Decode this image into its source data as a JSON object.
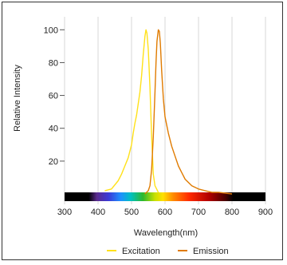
{
  "chart_data": {
    "type": "line",
    "title": "",
    "xlabel": "Wavelength(nm)",
    "ylabel": "Relative Intensity",
    "xlim": [
      300,
      900
    ],
    "ylim": [
      0,
      105
    ],
    "xticks": [
      300,
      400,
      500,
      600,
      700,
      800,
      900
    ],
    "yticks": [
      20,
      40,
      60,
      80,
      100
    ],
    "grid": "vertical",
    "legend_position": "bottom-center",
    "spectrum_bar": {
      "from_nm": 300,
      "to_nm": 900
    },
    "series": [
      {
        "name": "Excitation",
        "color": "#ffe119",
        "x": [
          420,
          440,
          460,
          470,
          480,
          490,
          500,
          505,
          510,
          515,
          520,
          525,
          530,
          535,
          540,
          543,
          546,
          550,
          555,
          560,
          565,
          570,
          580
        ],
        "y": [
          2,
          3,
          8,
          12,
          17,
          22,
          30,
          37,
          43,
          48,
          55,
          62,
          72,
          85,
          96,
          100,
          98,
          88,
          65,
          35,
          12,
          5,
          1
        ]
      },
      {
        "name": "Emission",
        "color": "#e07b00",
        "x": [
          540,
          550,
          555,
          560,
          565,
          570,
          573,
          576,
          580,
          583,
          586,
          590,
          595,
          600,
          610,
          620,
          630,
          640,
          650,
          660,
          680,
          700,
          720,
          740,
          760,
          800
        ],
        "y": [
          0,
          2,
          5,
          15,
          35,
          62,
          80,
          93,
          100,
          99,
          92,
          75,
          58,
          47,
          37,
          29,
          23,
          17,
          13,
          9,
          5,
          3,
          2,
          1,
          1,
          0
        ]
      }
    ]
  }
}
